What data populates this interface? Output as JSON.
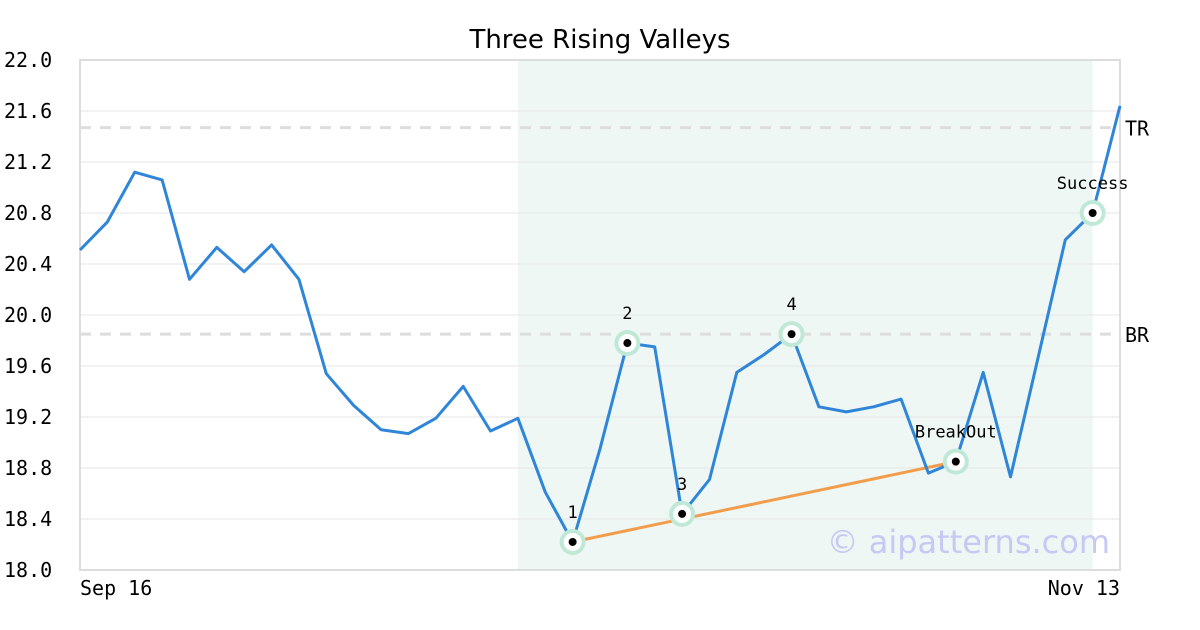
{
  "chart_data": {
    "type": "line",
    "title": "Three Rising Valleys",
    "x_tick_labels": [
      "Sep 16",
      "Nov 13"
    ],
    "ylim": [
      18.0,
      22.0
    ],
    "y_ticks": [
      "18.0",
      "18.4",
      "18.8",
      "19.2",
      "19.6",
      "20.0",
      "20.4",
      "20.8",
      "21.2",
      "21.6",
      "22.0"
    ],
    "grid": true,
    "series": [
      {
        "values": [
          20.51,
          20.73,
          21.12,
          21.06,
          20.28,
          20.53,
          20.34,
          20.55,
          20.28,
          19.54,
          19.29,
          19.1,
          19.07,
          19.19,
          19.44,
          19.09,
          19.19,
          18.61,
          18.22,
          18.95,
          19.78,
          19.75,
          18.44,
          18.71,
          19.55,
          19.69,
          19.85,
          19.28,
          19.24,
          19.28,
          19.34,
          18.76,
          18.85,
          19.55,
          18.73,
          19.66,
          20.59,
          20.8,
          21.64
        ]
      }
    ],
    "levels": [
      {
        "label": "TR",
        "value": 21.47
      },
      {
        "label": "BR",
        "value": 19.85
      }
    ],
    "pattern_region": {
      "start_index": 16,
      "end_index": 37
    },
    "trendline": {
      "from_index": 18,
      "from_value": 18.22,
      "to_index": 32,
      "to_value": 18.85
    },
    "points": [
      {
        "label": "1",
        "index": 18,
        "value": 18.22
      },
      {
        "label": "2",
        "index": 20,
        "value": 19.78
      },
      {
        "label": "3",
        "index": 22,
        "value": 18.44
      },
      {
        "label": "4",
        "index": 26,
        "value": 19.85
      },
      {
        "label": "BreakOut",
        "index": 32,
        "value": 18.85
      },
      {
        "label": "Success",
        "index": 37,
        "value": 20.8
      }
    ],
    "colors": {
      "line": "#2f86d9",
      "trendline": "#f29d4b",
      "region": "#eef7f3",
      "marker_halo": "#bfe9d6",
      "marker_dot": "#000000",
      "level_line": "#dddddd",
      "grid": "#e6e6e6",
      "frame": "#dddddd"
    }
  },
  "watermark": "© aipatterns.com"
}
